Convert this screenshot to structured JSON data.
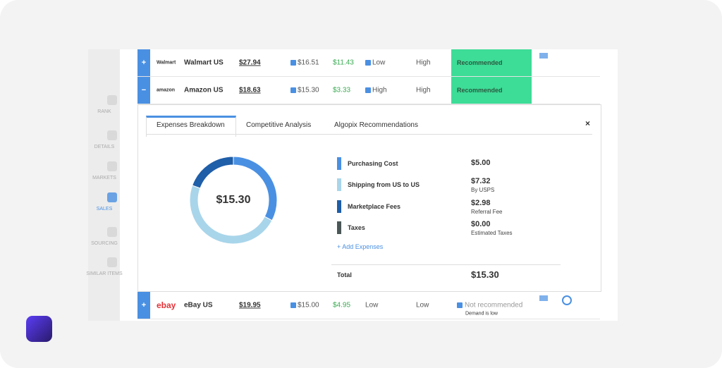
{
  "sidebar": [
    "RANK",
    "DETAILS",
    "MARKETS",
    "SALES",
    "SOURCING",
    "SIMILAR ITEMS"
  ],
  "rows": [
    {
      "expander": "+",
      "logo": "Walmart",
      "market": "Walmart US",
      "price": "$27.94",
      "cost": "$16.51",
      "profit": "$11.43",
      "competition": "Low",
      "demand": "High",
      "status": "Recommended"
    },
    {
      "expander": "−",
      "logo": "amazon",
      "market": "Amazon US",
      "price": "$18.63",
      "cost": "$15.30",
      "profit": "$3.33",
      "competition": "High",
      "demand": "High",
      "status": "Recommended"
    },
    {
      "expander": "+",
      "logo": "ebay",
      "market": "eBay US",
      "price": "$19.95",
      "cost": "$15.00",
      "profit": "$4.95",
      "competition": "Low",
      "demand": "Low",
      "status": "Not recommended",
      "note": "Demand is low"
    }
  ],
  "tabs": [
    "Expenses Breakdown",
    "Competitive Analysis",
    "Algopix Recommendations"
  ],
  "close": "×",
  "chart_data": {
    "type": "donut",
    "center_label": "$15.30",
    "categories": [
      "Purchasing Cost",
      "Shipping from US to US",
      "Marketplace Fees",
      "Taxes"
    ],
    "values": [
      5.0,
      7.32,
      2.98,
      0.0
    ],
    "value_labels": [
      "$5.00",
      "$7.32",
      "$2.98",
      "$0.00"
    ],
    "notes": [
      null,
      "By USPS",
      "Referral Fee",
      "Estimated Taxes"
    ],
    "colors": [
      "#4a90e2",
      "#a9d5ea",
      "#1f5ea8",
      "#4b5757"
    ]
  },
  "add_expenses": "+ Add Expenses",
  "total_label": "Total",
  "total": "$15.30"
}
